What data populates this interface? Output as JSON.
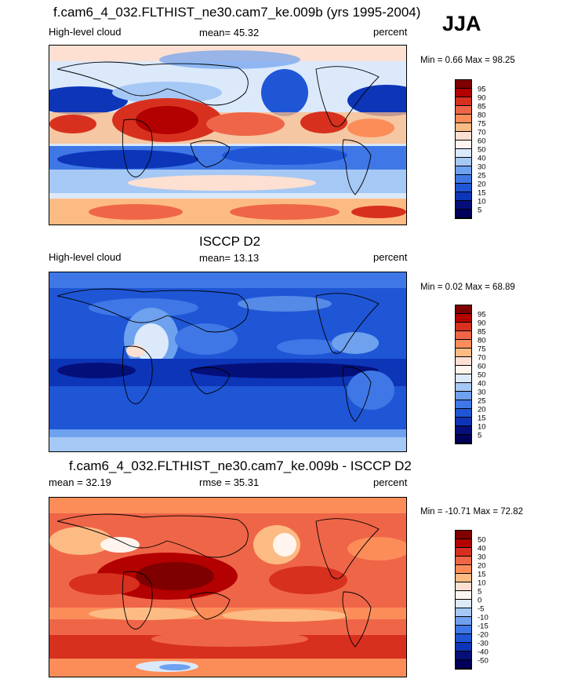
{
  "season": "JJA",
  "panels": [
    {
      "title": "f.cam6_4_032.FLTHIST_ne30.cam7_ke.009b (yrs 1995-2004)",
      "left_label": "High-level cloud",
      "center_label": "mean=  45.32",
      "right_label": "percent",
      "minmax": "Min =   0.66 Max =  98.25",
      "colorbar_levels": [
        "95",
        "90",
        "85",
        "80",
        "75",
        "70",
        "60",
        "50",
        "40",
        "30",
        "25",
        "20",
        "15",
        "10",
        "5"
      ]
    },
    {
      "title": "ISCCP D2",
      "left_label": "High-level cloud",
      "center_label": "mean=  13.13",
      "right_label": "percent",
      "minmax": "Min =   0.02 Max =  68.89",
      "colorbar_levels": [
        "95",
        "90",
        "85",
        "80",
        "75",
        "70",
        "60",
        "50",
        "40",
        "30",
        "25",
        "20",
        "15",
        "10",
        "5"
      ]
    },
    {
      "title": "f.cam6_4_032.FLTHIST_ne30.cam7_ke.009b - ISCCP D2",
      "left_label": "mean =  32.19",
      "center_label": "rmse =  35.31",
      "right_label": "percent",
      "minmax": "Min = -10.71 Max =  72.82",
      "colorbar_levels": [
        "50",
        "40",
        "30",
        "20",
        "15",
        "10",
        "5",
        "0",
        "-5",
        "-10",
        "-15",
        "-20",
        "-30",
        "-40",
        "-50"
      ]
    }
  ],
  "colors": {
    "abs_scale": [
      "#7f0000",
      "#b30000",
      "#d7301f",
      "#ef6548",
      "#fc8d59",
      "#fdbb84",
      "#fde0d2",
      "#fff5ee",
      "#dbe9fb",
      "#a6c8f5",
      "#6ea1ee",
      "#3f78e6",
      "#1f56d6",
      "#0d35b8",
      "#050f7a",
      "#00005a"
    ],
    "diff_scale": [
      "#7f0000",
      "#b30000",
      "#d7301f",
      "#ef6548",
      "#fc8d59",
      "#fdbb84",
      "#fde0d2",
      "#fff5ee",
      "#dbe9fb",
      "#a6c8f5",
      "#6ea1ee",
      "#3f78e6",
      "#1f56d6",
      "#0d35b8",
      "#050f7a",
      "#00005a"
    ]
  }
}
